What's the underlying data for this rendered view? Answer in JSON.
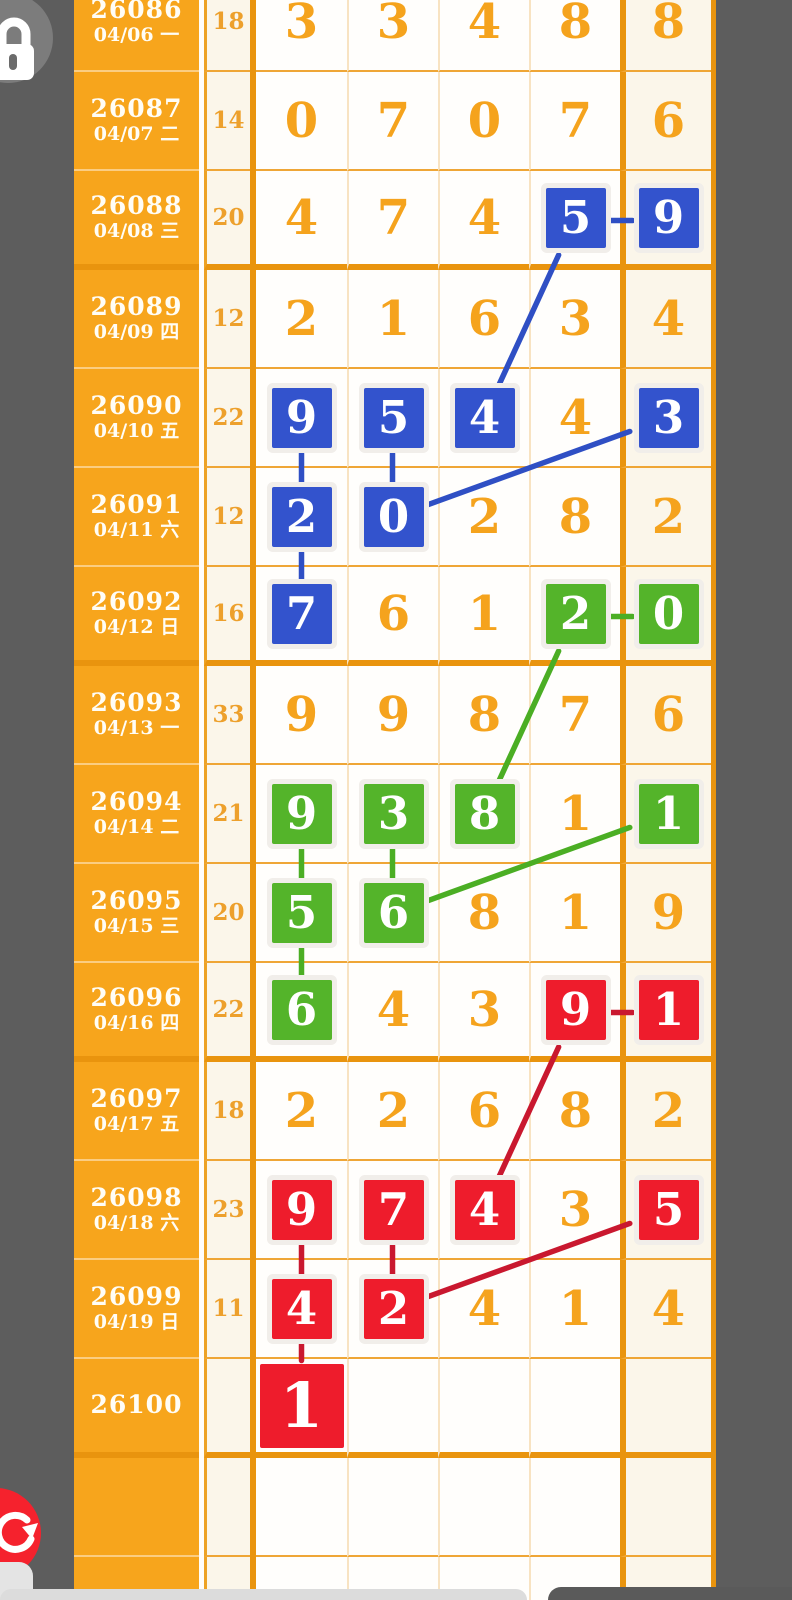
{
  "colors": {
    "background_gray": "#5d5d5d",
    "table_orange": "#f7a51c",
    "grid_thick": "#e9940e",
    "grid_thin": "#efa636",
    "grid_vertical": "#f8e3c2",
    "cell_white": "#fffefc",
    "cell_cream": "#fbf6ea",
    "digit_orange": "#f5a31d",
    "sum_orange": "#eda02c",
    "blue": "#3353cd",
    "blue_line": "#2f4fc4",
    "green": "#54b42a",
    "green_line": "#4bae24",
    "red": "#ee1c2c",
    "red_line": "#c9182f",
    "refresh_button_red": "#f5222d",
    "lock_circle_gray": "#7c7c7c"
  },
  "icons": {
    "lock_button": "lock-icon",
    "refresh_button": "refresh-icon"
  },
  "grid": {
    "columns": 5,
    "thick_after": [
      2,
      6,
      10,
      14
    ],
    "rows": [
      {
        "draw": "26086",
        "date": "04/06",
        "weekday": "一",
        "sum": "18",
        "cells": [
          {
            "v": "3"
          },
          {
            "v": "3"
          },
          {
            "v": "4"
          },
          {
            "v": "8"
          },
          {
            "v": "8"
          }
        ]
      },
      {
        "draw": "26087",
        "date": "04/07",
        "weekday": "二",
        "sum": "14",
        "cells": [
          {
            "v": "0"
          },
          {
            "v": "7"
          },
          {
            "v": "0"
          },
          {
            "v": "7"
          },
          {
            "v": "6"
          }
        ]
      },
      {
        "draw": "26088",
        "date": "04/08",
        "weekday": "三",
        "sum": "20",
        "cells": [
          {
            "v": "4"
          },
          {
            "v": "7"
          },
          {
            "v": "4"
          },
          {
            "v": "5",
            "box": "blue"
          },
          {
            "v": "9",
            "box": "blue"
          }
        ]
      },
      {
        "draw": "26089",
        "date": "04/09",
        "weekday": "四",
        "sum": "12",
        "cells": [
          {
            "v": "2"
          },
          {
            "v": "1"
          },
          {
            "v": "6"
          },
          {
            "v": "3"
          },
          {
            "v": "4"
          }
        ]
      },
      {
        "draw": "26090",
        "date": "04/10",
        "weekday": "五",
        "sum": "22",
        "cells": [
          {
            "v": "9",
            "box": "blue"
          },
          {
            "v": "5",
            "box": "blue"
          },
          {
            "v": "4",
            "box": "blue"
          },
          {
            "v": "4"
          },
          {
            "v": "3",
            "box": "blue"
          }
        ]
      },
      {
        "draw": "26091",
        "date": "04/11",
        "weekday": "六",
        "sum": "12",
        "cells": [
          {
            "v": "2",
            "box": "blue"
          },
          {
            "v": "0",
            "box": "blue"
          },
          {
            "v": "2"
          },
          {
            "v": "8"
          },
          {
            "v": "2"
          }
        ]
      },
      {
        "draw": "26092",
        "date": "04/12",
        "weekday": "日",
        "sum": "16",
        "cells": [
          {
            "v": "7",
            "box": "blue"
          },
          {
            "v": "6"
          },
          {
            "v": "1"
          },
          {
            "v": "2",
            "box": "green"
          },
          {
            "v": "0",
            "box": "green"
          }
        ]
      },
      {
        "draw": "26093",
        "date": "04/13",
        "weekday": "一",
        "sum": "33",
        "cells": [
          {
            "v": "9"
          },
          {
            "v": "9"
          },
          {
            "v": "8"
          },
          {
            "v": "7"
          },
          {
            "v": "6"
          }
        ]
      },
      {
        "draw": "26094",
        "date": "04/14",
        "weekday": "二",
        "sum": "21",
        "cells": [
          {
            "v": "9",
            "box": "green"
          },
          {
            "v": "3",
            "box": "green"
          },
          {
            "v": "8",
            "box": "green"
          },
          {
            "v": "1"
          },
          {
            "v": "1",
            "box": "green"
          }
        ]
      },
      {
        "draw": "26095",
        "date": "04/15",
        "weekday": "三",
        "sum": "20",
        "cells": [
          {
            "v": "5",
            "box": "green"
          },
          {
            "v": "6",
            "box": "green"
          },
          {
            "v": "8"
          },
          {
            "v": "1"
          },
          {
            "v": "9"
          }
        ]
      },
      {
        "draw": "26096",
        "date": "04/16",
        "weekday": "四",
        "sum": "22",
        "cells": [
          {
            "v": "6",
            "box": "green"
          },
          {
            "v": "4"
          },
          {
            "v": "3"
          },
          {
            "v": "9",
            "box": "red"
          },
          {
            "v": "1",
            "box": "red"
          }
        ]
      },
      {
        "draw": "26097",
        "date": "04/17",
        "weekday": "五",
        "sum": "18",
        "cells": [
          {
            "v": "2"
          },
          {
            "v": "2"
          },
          {
            "v": "6"
          },
          {
            "v": "8"
          },
          {
            "v": "2"
          }
        ]
      },
      {
        "draw": "26098",
        "date": "04/18",
        "weekday": "六",
        "sum": "23",
        "cells": [
          {
            "v": "9",
            "box": "red"
          },
          {
            "v": "7",
            "box": "red"
          },
          {
            "v": "4",
            "box": "red"
          },
          {
            "v": "3"
          },
          {
            "v": "5",
            "box": "red"
          }
        ]
      },
      {
        "draw": "26099",
        "date": "04/19",
        "weekday": "日",
        "sum": "11",
        "cells": [
          {
            "v": "4",
            "box": "red"
          },
          {
            "v": "2",
            "box": "red"
          },
          {
            "v": "4"
          },
          {
            "v": "1"
          },
          {
            "v": "4"
          }
        ]
      },
      {
        "draw": "26100",
        "date": "",
        "weekday": "",
        "sum": "",
        "cells": [
          {
            "v": "1",
            "box": "red",
            "big": true
          },
          {},
          {},
          {},
          {}
        ]
      },
      {
        "draw": "",
        "date": "",
        "weekday": "",
        "sum": "",
        "cells": [
          {},
          {},
          {},
          {},
          {}
        ]
      },
      {
        "draw": "",
        "date": "",
        "weekday": "",
        "sum": "",
        "cells": [
          {},
          {},
          {},
          {},
          {}
        ]
      }
    ],
    "connections": [
      {
        "color": "blue",
        "kind": "h",
        "from": [
          2,
          3
        ],
        "to": [
          2,
          4
        ]
      },
      {
        "color": "blue",
        "kind": "diag",
        "from": [
          2,
          3
        ],
        "to": [
          4,
          2
        ]
      },
      {
        "color": "blue",
        "kind": "v",
        "from": [
          4,
          0
        ],
        "to": [
          5,
          0
        ]
      },
      {
        "color": "blue",
        "kind": "v",
        "from": [
          5,
          0
        ],
        "to": [
          6,
          0
        ]
      },
      {
        "color": "blue",
        "kind": "v",
        "from": [
          4,
          1
        ],
        "to": [
          5,
          1
        ]
      },
      {
        "color": "blue",
        "kind": "diag",
        "from": [
          5,
          1
        ],
        "to": [
          4,
          4
        ]
      },
      {
        "color": "green",
        "kind": "h",
        "from": [
          6,
          3
        ],
        "to": [
          6,
          4
        ]
      },
      {
        "color": "green",
        "kind": "diag",
        "from": [
          6,
          3
        ],
        "to": [
          8,
          2
        ]
      },
      {
        "color": "green",
        "kind": "v",
        "from": [
          8,
          0
        ],
        "to": [
          9,
          0
        ]
      },
      {
        "color": "green",
        "kind": "v",
        "from": [
          9,
          0
        ],
        "to": [
          10,
          0
        ]
      },
      {
        "color": "green",
        "kind": "v",
        "from": [
          8,
          1
        ],
        "to": [
          9,
          1
        ]
      },
      {
        "color": "green",
        "kind": "diag",
        "from": [
          9,
          1
        ],
        "to": [
          8,
          4
        ]
      },
      {
        "color": "red",
        "kind": "h",
        "from": [
          10,
          3
        ],
        "to": [
          10,
          4
        ]
      },
      {
        "color": "red",
        "kind": "diag",
        "from": [
          10,
          3
        ],
        "to": [
          12,
          2
        ]
      },
      {
        "color": "red",
        "kind": "v",
        "from": [
          12,
          0
        ],
        "to": [
          13,
          0
        ]
      },
      {
        "color": "red",
        "kind": "v",
        "from": [
          13,
          0
        ],
        "to": [
          14,
          0
        ]
      },
      {
        "color": "red",
        "kind": "v",
        "from": [
          12,
          1
        ],
        "to": [
          13,
          1
        ]
      },
      {
        "color": "red",
        "kind": "diag",
        "from": [
          13,
          1
        ],
        "to": [
          12,
          4
        ]
      }
    ]
  }
}
